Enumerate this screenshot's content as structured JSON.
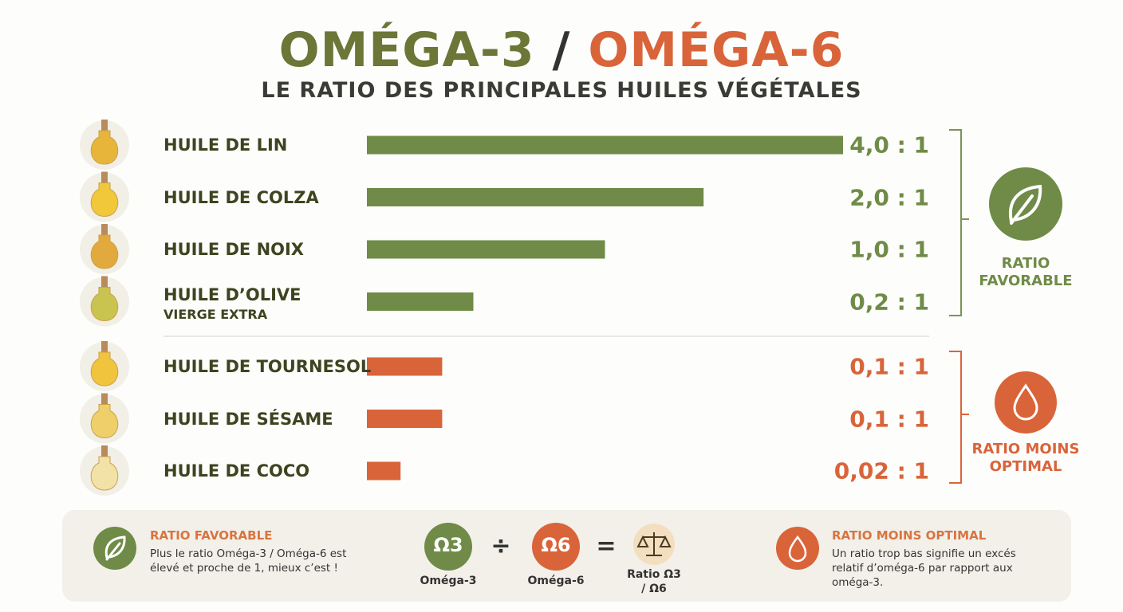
{
  "chart_data": {
    "type": "bar",
    "orientation": "horizontal",
    "title_left": "OMÉGA-3",
    "title_separator": "/",
    "title_right": "OMÉGA-6",
    "subtitle": "LE RATIO DES PRINCIPALES HUILES VÉGÉTALES",
    "categories": [
      "HUILE DE LIN",
      "HUILE DE COLZA",
      "HUILE DE NOIX",
      "HUILE D’OLIVE",
      "HUILE DE TOURNESOL",
      "HUILE DE SÉSAME",
      "HUILE DE COCO"
    ],
    "category_note": "VIERGE EXTRA",
    "xlim": [
      0,
      4
    ],
    "xscale": "sqrt",
    "series": [
      {
        "name": "RATIO FAVORABLE",
        "color": "#6f8b47",
        "values": [
          4.0,
          2.0,
          1.0,
          0.2,
          null,
          null,
          null
        ],
        "value_labels": [
          "4,0 : 1",
          "2,0 : 1",
          "1,0 : 1",
          "0,2 : 1",
          null,
          null,
          null
        ]
      },
      {
        "name": "RATIO MOINS OPTIMAL",
        "color": "#d9643a",
        "values": [
          null,
          null,
          null,
          null,
          0.1,
          0.1,
          0.02
        ],
        "value_labels": [
          null,
          null,
          null,
          null,
          "0,1 : 1",
          "0,1 : 1",
          "0,02 : 1"
        ]
      }
    ]
  },
  "footer": {
    "favorable_title": "RATIO FAVORABLE",
    "favorable_text": "Plus le ratio Oméga-3 / Oméga-6 est élevé et proche de 1, mieux c’est !",
    "less_title": "RATIO MOINS OPTIMAL",
    "less_text": "Un ratio trop bas signifie un excés relatif d’oméga-6 par rapport aux oméga-3.",
    "omega3_symbol": "Ω3",
    "omega3_label": "Oméga-3",
    "divide": "÷",
    "omega6_symbol": "Ω6",
    "omega6_label": "Oméga-6",
    "equals": "=",
    "ratio_label": "Ratio Ω3 / Ω6"
  }
}
